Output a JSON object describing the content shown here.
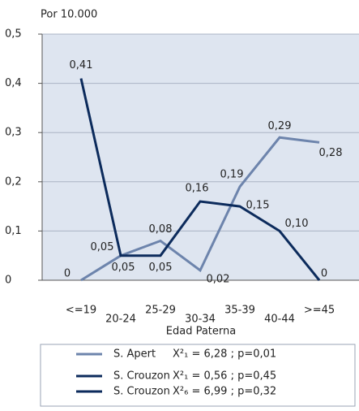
{
  "chart_data": {
    "type": "line",
    "y_axis_title": "Por 10.000",
    "x_axis_title": "Edad Paterna",
    "categories": [
      "<=19",
      "20-24",
      "25-29",
      "30-34",
      "35-39",
      "40-44",
      ">=45"
    ],
    "series": [
      {
        "name": "S. Apert",
        "color": "#6d84ac",
        "stat": "X²₁ = 6,28  ;  p=0,01",
        "values": [
          0,
          0.05,
          0.08,
          0.02,
          0.19,
          0.29,
          0.28
        ],
        "value_labels": [
          "0",
          "0,05",
          "0,08",
          "0,02",
          "0,19",
          "0,29",
          "0,28"
        ]
      },
      {
        "name": "S. Crouzon",
        "color": "#0c2b5c",
        "stat": "X²₁ = 0,56  ;  p=0,45",
        "values": [
          0.41,
          0.05,
          0.05,
          0.16,
          0.15,
          0.1,
          0
        ],
        "value_labels": [
          "0,41",
          "0,05",
          "0,05",
          "0,16",
          "0,15",
          "0,10",
          "0"
        ]
      }
    ],
    "legend_extra": [
      {
        "name": "S. Crouzon",
        "color": "#0c2b5c",
        "stat": "X²₆ = 6,99  ;  p=0,32"
      }
    ],
    "ylim": [
      0,
      0.5
    ],
    "yticks": [
      0,
      {
        "value": 0.1,
        "label": "0,1"
      },
      {
        "value": 0.2,
        "label": "0,2"
      },
      {
        "value": 0.3,
        "label": "0,3"
      },
      {
        "value": 0.4,
        "label": "0,4"
      },
      {
        "value": 0.5,
        "label": "0,5"
      }
    ],
    "grid": true,
    "plot_background": "#dee5f0"
  }
}
